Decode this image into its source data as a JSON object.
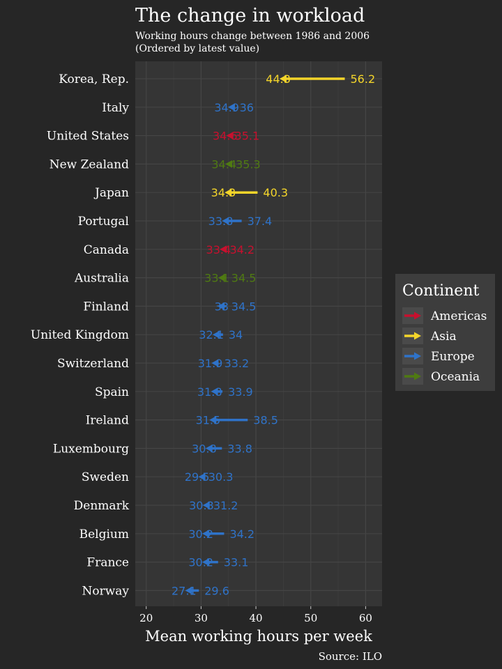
{
  "chart_data": {
    "type": "dumbbell-arrow",
    "title": "The change in workload",
    "subtitle_lines": [
      "Working hours change between 1986 and 2006",
      "(Ordered by latest value)"
    ],
    "xlabel": "Mean working hours per week",
    "caption": "Source: ILO",
    "xlim": [
      18,
      63
    ],
    "xticks": [
      20,
      30,
      40,
      50,
      60
    ],
    "grid": true,
    "legend": {
      "title": "Continent",
      "placement": "right",
      "entries": [
        "Americas",
        "Asia",
        "Europe",
        "Oceania"
      ]
    },
    "colors": {
      "Americas": "#c8102e",
      "Asia": "#f4d52a",
      "Europe": "#2f73c9",
      "Oceania": "#4f7a12"
    },
    "rows": [
      {
        "country": "Korea, Rep.",
        "continent": "Asia",
        "start": 56.2,
        "end": 44.3
      },
      {
        "country": "Italy",
        "continent": "Europe",
        "start": 36,
        "end": 34.9
      },
      {
        "country": "United States",
        "continent": "Americas",
        "start": 35.1,
        "end": 34.6
      },
      {
        "country": "New Zealand",
        "continent": "Oceania",
        "start": 35.3,
        "end": 34.4
      },
      {
        "country": "Japan",
        "continent": "Asia",
        "start": 40.3,
        "end": 34.3
      },
      {
        "country": "Portugal",
        "continent": "Europe",
        "start": 37.4,
        "end": 33.8
      },
      {
        "country": "Canada",
        "continent": "Americas",
        "start": 34.2,
        "end": 33.4
      },
      {
        "country": "Australia",
        "continent": "Oceania",
        "start": 34.5,
        "end": 33.1
      },
      {
        "country": "Finland",
        "continent": "Europe",
        "start": 34.5,
        "end": 33
      },
      {
        "country": "United Kingdom",
        "continent": "Europe",
        "start": 34,
        "end": 32.1
      },
      {
        "country": "Switzerland",
        "continent": "Europe",
        "start": 33.2,
        "end": 31.9
      },
      {
        "country": "Spain",
        "continent": "Europe",
        "start": 33.9,
        "end": 31.8
      },
      {
        "country": "Ireland",
        "continent": "Europe",
        "start": 38.5,
        "end": 31.5
      },
      {
        "country": "Luxembourg",
        "continent": "Europe",
        "start": 33.8,
        "end": 30.8
      },
      {
        "country": "Sweden",
        "continent": "Europe",
        "start": 30.3,
        "end": 29.5
      },
      {
        "country": "Denmark",
        "continent": "Europe",
        "start": 31.2,
        "end": 30.3
      },
      {
        "country": "Belgium",
        "continent": "Europe",
        "start": 34.2,
        "end": 30.2
      },
      {
        "country": "France",
        "continent": "Europe",
        "start": 33.1,
        "end": 30.2
      },
      {
        "country": "Norway",
        "continent": "Europe",
        "start": 29.6,
        "end": 27.1
      }
    ]
  }
}
